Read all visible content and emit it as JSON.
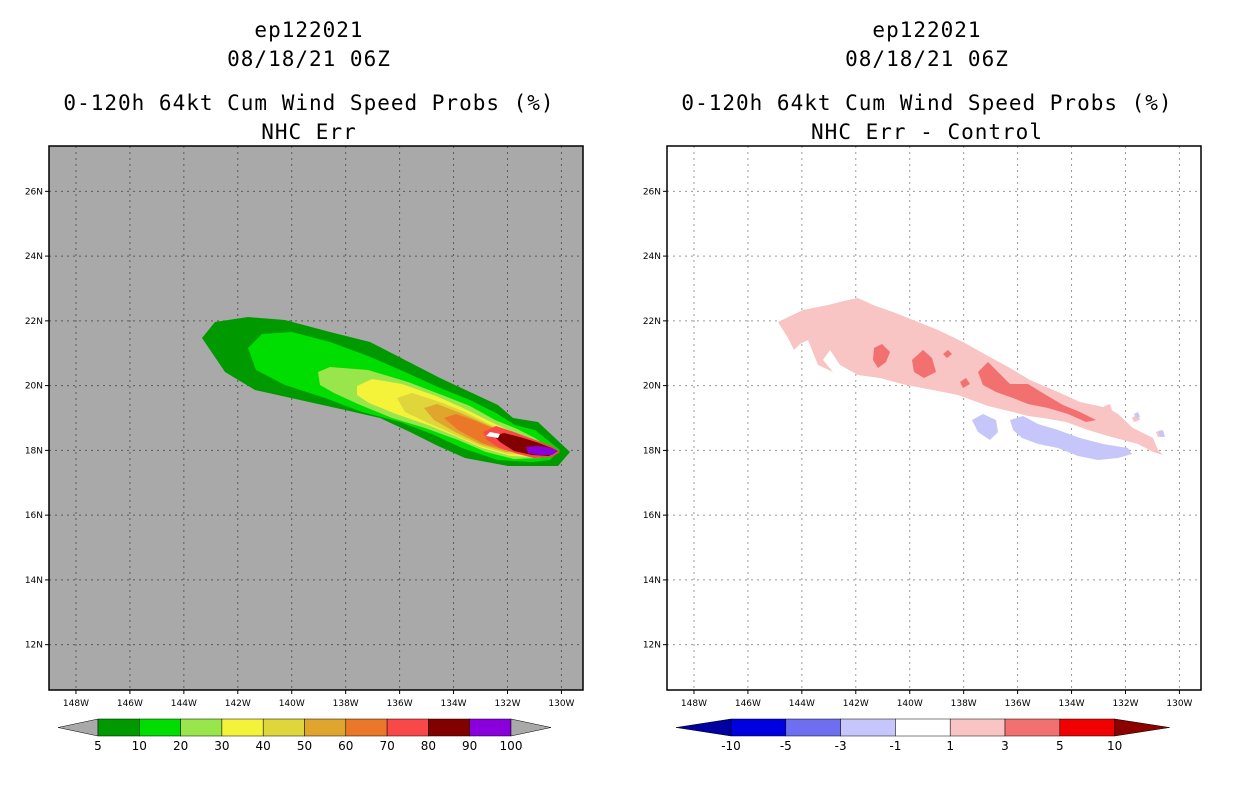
{
  "left_panel": {
    "storm_id": "ep122021",
    "datetime": "08/18/21 06Z",
    "product": "0-120h 64kt Cum Wind Speed Probs (%)",
    "subtitle": "NHC Err",
    "background_color": "#a9a9a9",
    "colorbar": {
      "labels": [
        "5",
        "10",
        "20",
        "30",
        "40",
        "50",
        "60",
        "70",
        "80",
        "90",
        "100"
      ],
      "colors": [
        "#009a00",
        "#00dd00",
        "#98e64c",
        "#f5f23a",
        "#dfd63c",
        "#e0a52c",
        "#ea7828",
        "#f84848",
        "#820000",
        "#8a00dc"
      ],
      "arrow_color": "#a9a9a9"
    },
    "contours": [
      {
        "level": "5-10",
        "color": "#009a00"
      },
      {
        "level": "10-20",
        "color": "#00dd00"
      },
      {
        "level": "20-30",
        "color": "#98e64c"
      },
      {
        "level": "30-40",
        "color": "#f5f23a"
      },
      {
        "level": "40-50",
        "color": "#dfd63c"
      },
      {
        "level": "50-60",
        "color": "#e0a52c"
      },
      {
        "level": "60-70",
        "color": "#ea7828"
      },
      {
        "level": "70-80",
        "color": "#f84848"
      },
      {
        "level": "80-90",
        "color": "#820000"
      },
      {
        "level": "90-100",
        "color": "#8a00dc"
      }
    ]
  },
  "right_panel": {
    "storm_id": "ep122021",
    "datetime": "08/18/21 06Z",
    "product": "0-120h 64kt Cum Wind Speed Probs (%)",
    "subtitle": "NHC Err - Control",
    "background_color": "#ffffff",
    "colorbar": {
      "labels": [
        "-10",
        "-5",
        "-3",
        "-1",
        "1",
        "3",
        "5",
        "10"
      ],
      "colors": [
        "#0000e0",
        "#6e6ef0",
        "#c6c6fa",
        "#ffffff",
        "#f8c4c4",
        "#f27070",
        "#f00000"
      ],
      "low_arrow_color": "#0000a0",
      "high_arrow_color": "#8c0000"
    },
    "contours": [
      {
        "level": "1 to 3",
        "color": "#f8c4c4"
      },
      {
        "level": "3 to 5",
        "color": "#f27070"
      },
      {
        "level": "-3 to -1",
        "color": "#c6c6fa"
      }
    ]
  },
  "axes": {
    "lon_labels": [
      "148W",
      "146W",
      "144W",
      "142W",
      "140W",
      "138W",
      "136W",
      "134W",
      "132W",
      "130W"
    ],
    "lat_labels": [
      "26N",
      "24N",
      "22N",
      "20N",
      "18N",
      "16N",
      "14N",
      "12N"
    ],
    "lon_range": [
      149,
      129.2
    ],
    "lat_range": [
      10.6,
      27.4
    ]
  }
}
